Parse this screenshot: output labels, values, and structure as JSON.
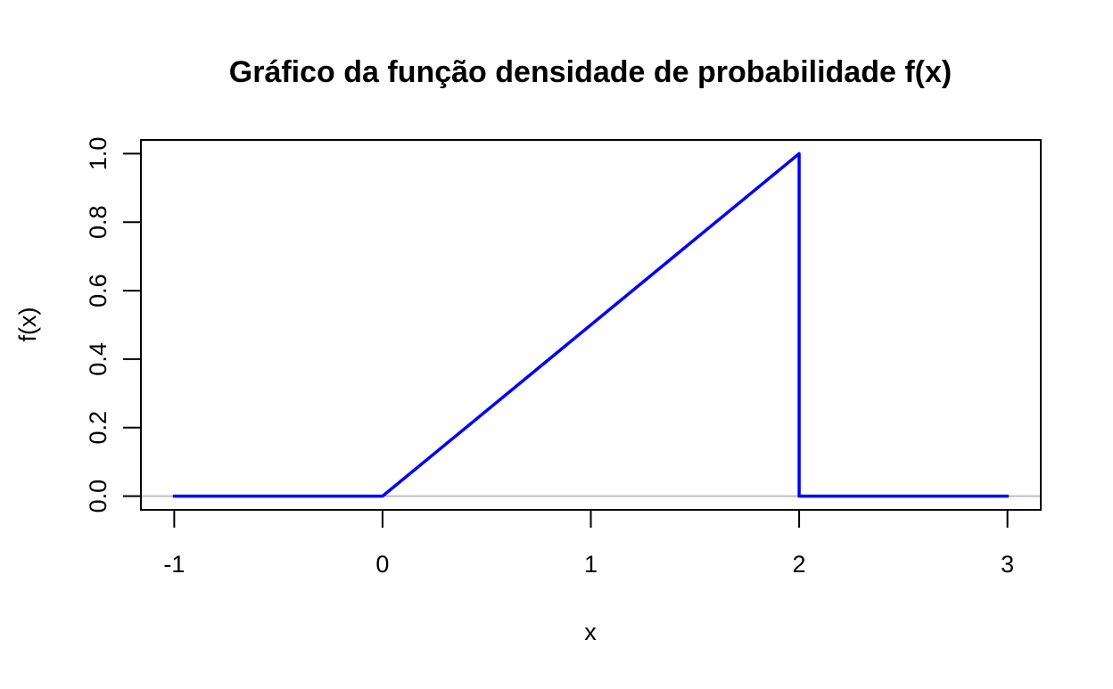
{
  "chart_data": {
    "type": "line",
    "title": "Gráfico da função densidade de probabilidade f(x)",
    "xlabel": "x",
    "ylabel": "f(x)",
    "xlim": [
      -1.16,
      3.16
    ],
    "ylim": [
      -0.04,
      1.04
    ],
    "x_ticks": [
      -1,
      0,
      1,
      2,
      3
    ],
    "x_tick_labels": [
      "-1",
      "0",
      "1",
      "2",
      "3"
    ],
    "y_ticks": [
      0,
      0.2,
      0.4,
      0.6,
      0.8,
      1
    ],
    "y_tick_labels": [
      "0.0",
      "0.2",
      "0.4",
      "0.6",
      "0.8",
      "1.0"
    ],
    "grid": false,
    "reference_lines": [
      {
        "orientation": "horizontal",
        "y": 0,
        "color": "#bebebe"
      }
    ],
    "series": [
      {
        "color": "#0000ff",
        "x": [
          -1,
          0,
          2,
          2,
          3
        ],
        "y": [
          0,
          0,
          1,
          0,
          0
        ]
      }
    ]
  }
}
